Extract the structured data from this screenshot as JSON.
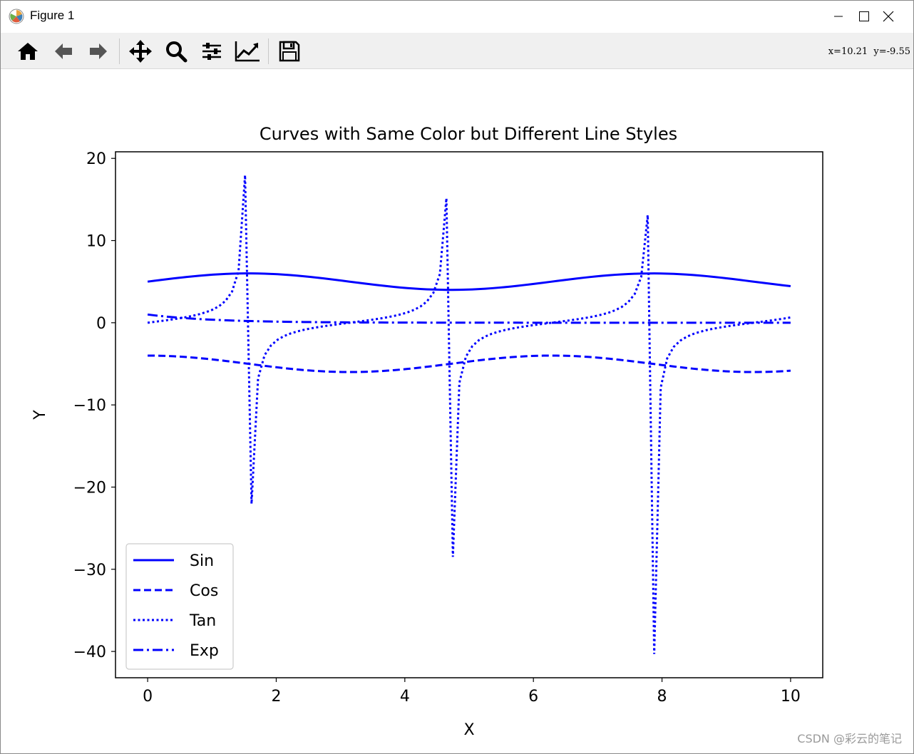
{
  "window": {
    "title": "Figure 1"
  },
  "toolbar": {
    "tools": [
      {
        "name": "home-icon"
      },
      {
        "name": "back-arrow-icon"
      },
      {
        "name": "forward-arrow-icon"
      },
      {
        "name": "pan-move-icon"
      },
      {
        "name": "zoom-magnifier-icon"
      },
      {
        "name": "configure-subplots-icon"
      },
      {
        "name": "edit-axis-icon"
      },
      {
        "name": "save-floppy-icon"
      }
    ],
    "coords": "x=10.21  y=-9.55"
  },
  "watermark": "CSDN @彩云的笔记",
  "colors": {
    "line": "#0000ff",
    "toolbar_bg": "#f0f0f0"
  },
  "chart_data": {
    "type": "line",
    "title": "Curves with Same Color but Different Line Styles",
    "xlabel": "X",
    "ylabel": "Y",
    "xlim": [
      -0.5,
      10.5
    ],
    "ylim": [
      -43.2,
      20.8
    ],
    "xticks": [
      0,
      2,
      4,
      6,
      8,
      10
    ],
    "xtick_labels": [
      "0",
      "2",
      "4",
      "6",
      "8",
      "10"
    ],
    "yticks": [
      20,
      10,
      0,
      -10,
      -20,
      -30,
      -40
    ],
    "ytick_labels": [
      "20",
      "10",
      "0",
      "−10",
      "−20",
      "−30",
      "−40"
    ],
    "grid": false,
    "legend_position": "lower-left",
    "series": [
      {
        "name": "Sin",
        "style": "solid",
        "formula": "sin(x) + 5"
      },
      {
        "name": "Cos",
        "style": "dashed",
        "formula": "cos(x) - 5"
      },
      {
        "name": "Tan",
        "style": "dotted",
        "formula": "tan(x)"
      },
      {
        "name": "Exp",
        "style": "dashdot",
        "formula": "exp(-x)"
      }
    ],
    "x": {
      "start": 0,
      "stop": 10,
      "points": 100
    }
  }
}
